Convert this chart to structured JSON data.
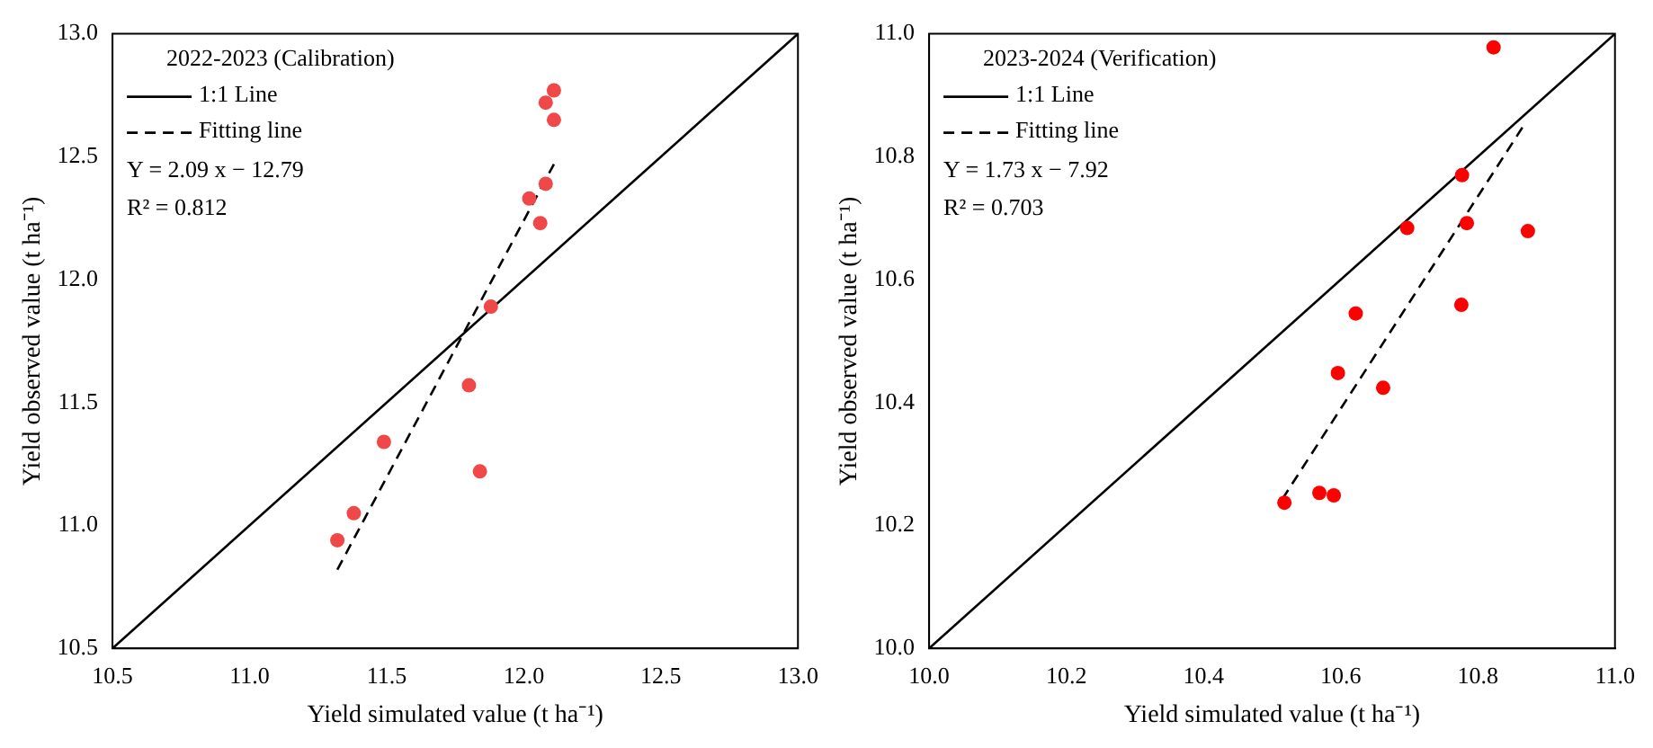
{
  "chart_data": [
    {
      "type": "scatter",
      "legend_title": "2022-2023 (Calibration)",
      "legend": "top left",
      "xlabel": "Yield simulated value (t ha⁻¹)",
      "ylabel": "Yield observed value (t ha⁻¹)",
      "xlim": [
        10.5,
        13.0
      ],
      "xticks": [
        {
          "value": 10.5,
          "label": "10.5"
        },
        {
          "value": 11,
          "label": "11.0"
        },
        {
          "value": 11.5,
          "label": "11.5"
        },
        {
          "value": 12,
          "label": "12.0"
        },
        {
          "value": 12.5,
          "label": "12.5"
        },
        {
          "value": 13,
          "label": "13.0"
        }
      ],
      "ylim": [
        10.5,
        13.0
      ],
      "yticks": [
        {
          "value": 10.5,
          "label": "10.5"
        },
        {
          "value": 11,
          "label": "11.0"
        },
        {
          "value": 11.5,
          "label": "11.5"
        },
        {
          "value": 12,
          "label": "12.0"
        },
        {
          "value": 12.5,
          "label": "12.5"
        },
        {
          "value": 13,
          "label": "13.0"
        }
      ],
      "annotations": [
        "Y = 2.09 x − 12.79",
        "R² = 0.812"
      ],
      "series": [
        {
          "name": "1:1 Line",
          "type": "line",
          "color": "#000000",
          "line_style": "solid",
          "marker": "none",
          "x": [
            10.5,
            13.0
          ],
          "values": [
            10.5,
            13.0
          ]
        },
        {
          "name": "Fitting line",
          "type": "line",
          "color": "#000000",
          "line_style": "dashed",
          "marker": "none",
          "x": [
            11.32,
            12.11
          ],
          "values": [
            10.82,
            12.47
          ]
        },
        {
          "type": "scatter",
          "color": "#f04848",
          "marker": "circle",
          "x": [
            12.11,
            12.08,
            12.11,
            12.08,
            12.02,
            12.06,
            11.88,
            11.8,
            11.84,
            11.49,
            11.38,
            11.32
          ],
          "values": [
            12.77,
            12.72,
            12.65,
            12.39,
            12.33,
            12.23,
            11.89,
            11.57,
            11.22,
            11.34,
            11.05,
            10.94
          ]
        }
      ]
    },
    {
      "type": "scatter",
      "legend_title": "2023-2024 (Verification)",
      "legend": "top left",
      "xlabel": "Yield simulated value (t ha⁻¹)",
      "ylabel": "Yield observed value (t ha⁻¹)",
      "xlim": [
        10.0,
        11.0
      ],
      "xticks": [
        {
          "value": 10,
          "label": "10.0"
        },
        10.2,
        10.4,
        10.6,
        10.8,
        {
          "value": 11,
          "label": "11.0"
        }
      ],
      "ylim": [
        10.0,
        11.0
      ],
      "yticks": [
        {
          "value": 10,
          "label": "10.0"
        },
        10.2,
        10.4,
        10.6,
        10.8,
        {
          "value": 11,
          "label": "11.0"
        }
      ],
      "annotations": [
        "Y = 1.73 x − 7.92",
        "R² = 0.703"
      ],
      "series": [
        {
          "name": "1:1 Line",
          "type": "line",
          "color": "#000000",
          "line_style": "solid",
          "marker": "none",
          "x": [
            10.0,
            11.0
          ],
          "values": [
            10.0,
            11.0
          ]
        },
        {
          "name": "Fitting line",
          "type": "line",
          "color": "#000000",
          "line_style": "dashed",
          "marker": "none",
          "x": [
            10.515,
            10.867
          ],
          "values": [
            10.243,
            10.851
          ]
        },
        {
          "type": "scatter",
          "color": "#ff0000",
          "marker": "circle",
          "x": [
            10.823,
            10.777,
            10.697,
            10.784,
            10.873,
            10.776,
            10.622,
            10.596,
            10.662,
            10.569,
            10.59,
            10.518
          ],
          "values": [
            10.978,
            10.77,
            10.684,
            10.692,
            10.679,
            10.559,
            10.545,
            10.448,
            10.424,
            10.253,
            10.249,
            10.237
          ]
        }
      ]
    }
  ]
}
